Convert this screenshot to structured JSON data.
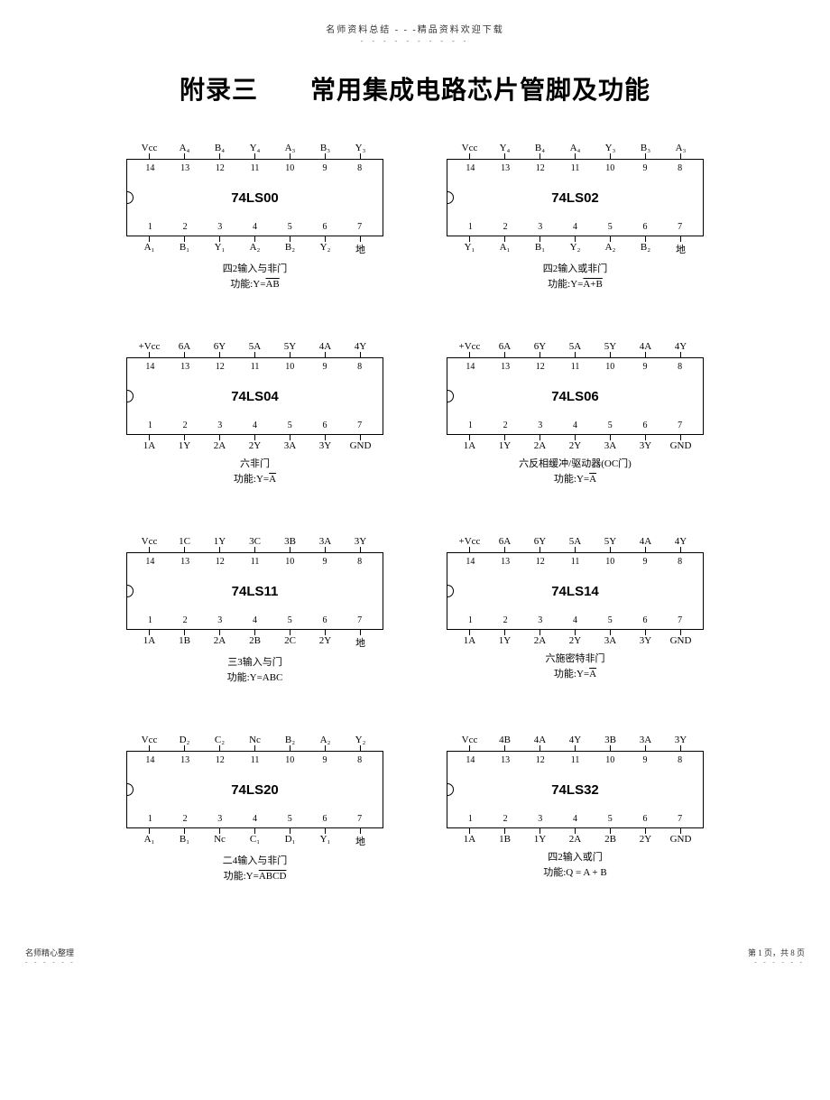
{
  "header": {
    "text": "名师资料总结 - - -精品资料欢迎下载",
    "dots": "- - - - - - - - - -"
  },
  "title": "附录三　　常用集成电路芯片管脚及功能",
  "chips": [
    {
      "name": "74LS00",
      "top_labels": [
        "Vcc",
        "A₄",
        "B₄",
        "Y₄",
        "A₃",
        "B₃",
        "Y₃"
      ],
      "top_nums": [
        "14",
        "13",
        "12",
        "11",
        "10",
        "9",
        "8"
      ],
      "bot_nums": [
        "1",
        "2",
        "3",
        "4",
        "5",
        "6",
        "7"
      ],
      "bot_labels": [
        "A₁",
        "B₁",
        "Y₁",
        "A₂",
        "B₂",
        "Y₂",
        "地"
      ],
      "desc1": "四2输入与非门",
      "desc2_prefix": "功能:Y=",
      "desc2_over": "AB",
      "desc2_suffix": ""
    },
    {
      "name": "74LS02",
      "top_labels": [
        "Vcc",
        "Y₄",
        "B₄",
        "A₄",
        "Y₃",
        "B₃",
        "A₃"
      ],
      "top_nums": [
        "14",
        "13",
        "12",
        "11",
        "10",
        "9",
        "8"
      ],
      "bot_nums": [
        "1",
        "2",
        "3",
        "4",
        "5",
        "6",
        "7"
      ],
      "bot_labels": [
        "Y₁",
        "A₁",
        "B₁",
        "Y₂",
        "A₂",
        "B₂",
        "地"
      ],
      "desc1": "四2输入或非门",
      "desc2_prefix": "功能:Y=",
      "desc2_over": "A+B",
      "desc2_suffix": ""
    },
    {
      "name": "74LS04",
      "top_labels": [
        "+Vcc",
        "6A",
        "6Y",
        "5A",
        "5Y",
        "4A",
        "4Y"
      ],
      "top_nums": [
        "14",
        "13",
        "12",
        "11",
        "10",
        "9",
        "8"
      ],
      "bot_nums": [
        "1",
        "2",
        "3",
        "4",
        "5",
        "6",
        "7"
      ],
      "bot_labels": [
        "1A",
        "1Y",
        "2A",
        "2Y",
        "3A",
        "3Y",
        "GND"
      ],
      "desc1": "六非门",
      "desc2_prefix": "功能:Y=",
      "desc2_over": "A",
      "desc2_suffix": ""
    },
    {
      "name": "74LS06",
      "top_labels": [
        "+Vcc",
        "6A",
        "6Y",
        "5A",
        "5Y",
        "4A",
        "4Y"
      ],
      "top_nums": [
        "14",
        "13",
        "12",
        "11",
        "10",
        "9",
        "8"
      ],
      "bot_nums": [
        "1",
        "2",
        "3",
        "4",
        "5",
        "6",
        "7"
      ],
      "bot_labels": [
        "1A",
        "1Y",
        "2A",
        "2Y",
        "3A",
        "3Y",
        "GND"
      ],
      "desc1": "六反相缓冲/驱动器(OC门)",
      "desc2_prefix": "功能:Y=",
      "desc2_over": "A",
      "desc2_suffix": ""
    },
    {
      "name": "74LS11",
      "top_labels": [
        "Vcc",
        "1C",
        "1Y",
        "3C",
        "3B",
        "3A",
        "3Y"
      ],
      "top_nums": [
        "14",
        "13",
        "12",
        "11",
        "10",
        "9",
        "8"
      ],
      "bot_nums": [
        "1",
        "2",
        "3",
        "4",
        "5",
        "6",
        "7"
      ],
      "bot_labels": [
        "1A",
        "1B",
        "2A",
        "2B",
        "2C",
        "2Y",
        "地"
      ],
      "desc1": "三3输入与门",
      "desc2_prefix": "功能:Y=ABC",
      "desc2_over": "",
      "desc2_suffix": ""
    },
    {
      "name": "74LS14",
      "top_labels": [
        "+Vcc",
        "6A",
        "6Y",
        "5A",
        "5Y",
        "4A",
        "4Y"
      ],
      "top_nums": [
        "14",
        "13",
        "12",
        "11",
        "10",
        "9",
        "8"
      ],
      "bot_nums": [
        "1",
        "2",
        "3",
        "4",
        "5",
        "6",
        "7"
      ],
      "bot_labels": [
        "1A",
        "1Y",
        "2A",
        "2Y",
        "3A",
        "3Y",
        "GND"
      ],
      "desc1": "六施密特非门",
      "desc2_prefix": "功能:Y=",
      "desc2_over": "A",
      "desc2_suffix": ""
    },
    {
      "name": "74LS20",
      "top_labels": [
        "Vcc",
        "D₂",
        "C₂",
        "Nc",
        "B₂",
        "A₂",
        "Y₂"
      ],
      "top_nums": [
        "14",
        "13",
        "12",
        "11",
        "10",
        "9",
        "8"
      ],
      "bot_nums": [
        "1",
        "2",
        "3",
        "4",
        "5",
        "6",
        "7"
      ],
      "bot_labels": [
        "A₁",
        "B₁",
        "Nc",
        "C₁",
        "D₁",
        "Y₁",
        "地"
      ],
      "desc1": "二4输入与非门",
      "desc2_prefix": "功能:Y=",
      "desc2_over": "ABCD",
      "desc2_suffix": ""
    },
    {
      "name": "74LS32",
      "top_labels": [
        "Vcc",
        "4B",
        "4A",
        "4Y",
        "3B",
        "3A",
        "3Y"
      ],
      "top_nums": [
        "14",
        "13",
        "12",
        "11",
        "10",
        "9",
        "8"
      ],
      "bot_nums": [
        "1",
        "2",
        "3",
        "4",
        "5",
        "6",
        "7"
      ],
      "bot_labels": [
        "1A",
        "1B",
        "1Y",
        "2A",
        "2B",
        "2Y",
        "GND"
      ],
      "desc1": "四2输入或门",
      "desc2_prefix": "功能:Q = A + B",
      "desc2_over": "",
      "desc2_suffix": ""
    }
  ],
  "footer": {
    "left": "名师精心整理",
    "left_dots": "- - - - - -",
    "right": "第 1 页，共 8 页",
    "right_dots": "- - - - - -"
  }
}
